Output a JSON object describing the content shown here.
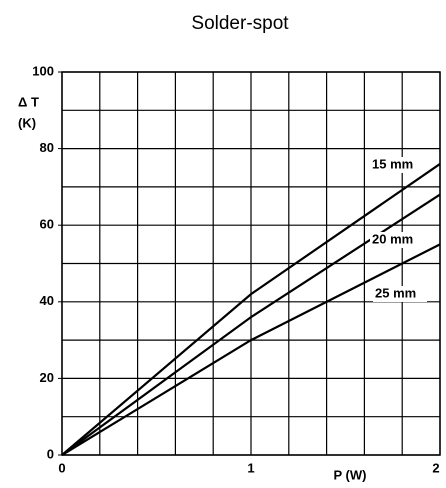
{
  "chart_data": {
    "type": "line",
    "title": "Solder-spot",
    "xlabel": "P (W)",
    "ylabel": [
      "Δ T",
      "(K)"
    ],
    "xlim": [
      0,
      2
    ],
    "ylim": [
      0,
      100
    ],
    "xticks": [
      0,
      1,
      2
    ],
    "yticks": [
      0,
      20,
      40,
      60,
      80,
      100
    ],
    "xgrid": [
      0,
      0.2,
      0.4,
      0.6,
      0.8,
      1,
      1.2,
      1.4,
      1.6,
      1.8,
      2
    ],
    "ygrid": [
      0,
      10,
      20,
      30,
      40,
      50,
      60,
      70,
      80,
      90,
      100
    ],
    "grid": true,
    "series": [
      {
        "name": "15 mm",
        "color": "#000000",
        "x": [
          0,
          1,
          2
        ],
        "values": [
          0,
          42,
          76
        ]
      },
      {
        "name": "20 mm",
        "color": "#000000",
        "x": [
          0,
          1,
          2
        ],
        "values": [
          0,
          36,
          68
        ]
      },
      {
        "name": "25 mm",
        "color": "#000000",
        "x": [
          0,
          1,
          2
        ],
        "values": [
          0,
          30,
          55
        ]
      }
    ]
  }
}
